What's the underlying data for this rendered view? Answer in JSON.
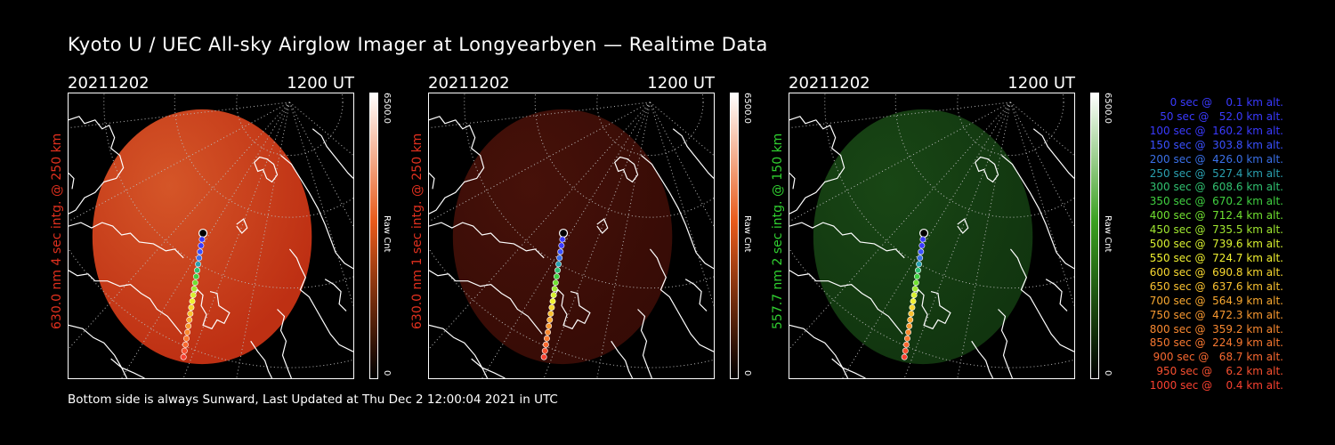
{
  "title": "Kyoto U / UEC All-sky Airglow Imager at Longyearbyen — Realtime Data",
  "panels": [
    {
      "date": "20211202",
      "time": "1200 UT",
      "side_label": "630.0 nm 4 sec intg. @ 250 km",
      "label_color": "#e0301e",
      "cbar_max": "6500.0",
      "cbar_min": "0",
      "cbar_unit": "Raw Cnt",
      "cbar_top": "#ffffff",
      "cbar_mid": "#e85a1a",
      "cbar_bottom": "#000000",
      "disk_color": "#c83214",
      "disk_glow": "#e05a2a",
      "disk_opacity": 0.95
    },
    {
      "date": "20211202",
      "time": "1200 UT",
      "side_label": "630.0 nm 1 sec intg. @ 250 km",
      "label_color": "#e0301e",
      "cbar_max": "6500.0",
      "cbar_min": "0",
      "cbar_unit": "Raw Cnt",
      "cbar_top": "#ffffff",
      "cbar_mid": "#e85a1a",
      "cbar_bottom": "#000000",
      "disk_color": "#3a0c06",
      "disk_glow": "#4a120a",
      "disk_opacity": 0.95
    },
    {
      "date": "20211202",
      "time": "1200 UT",
      "side_label": "557.7 nm 2 sec intg. @ 150 km",
      "label_color": "#30d030",
      "cbar_max": "6500.0",
      "cbar_min": "0",
      "cbar_unit": "Raw Cnt",
      "cbar_top": "#ffffff",
      "cbar_mid": "#3aa020",
      "cbar_bottom": "#000000",
      "disk_color": "#123810",
      "disk_glow": "#1a4a16",
      "disk_opacity": 0.95
    }
  ],
  "footer": "Bottom side is always Sunward, Last Updated at Thu Dec  2 12:00:04 2021 in UTC",
  "legend": [
    {
      "text": "   0 sec @    0.1 km alt.",
      "color": "#3a3aff"
    },
    {
      "text": "  50 sec @   52.0 km alt.",
      "color": "#3a3aff"
    },
    {
      "text": " 100 sec @  160.2 km alt.",
      "color": "#3a3aff"
    },
    {
      "text": " 150 sec @  303.8 km alt.",
      "color": "#3a50ff"
    },
    {
      "text": " 200 sec @  426.0 km alt.",
      "color": "#3a70e8"
    },
    {
      "text": " 250 sec @  527.4 km alt.",
      "color": "#2aa0b0"
    },
    {
      "text": " 300 sec @  608.6 km alt.",
      "color": "#30c070"
    },
    {
      "text": " 350 sec @  670.2 km alt.",
      "color": "#40d040"
    },
    {
      "text": " 400 sec @  712.4 km alt.",
      "color": "#70e030"
    },
    {
      "text": " 450 sec @  735.5 km alt.",
      "color": "#a0e830"
    },
    {
      "text": " 500 sec @  739.6 km alt.",
      "color": "#d8f030"
    },
    {
      "text": " 550 sec @  724.7 km alt.",
      "color": "#f0f030"
    },
    {
      "text": " 600 sec @  690.8 km alt.",
      "color": "#f8d830"
    },
    {
      "text": " 650 sec @  637.6 km alt.",
      "color": "#f8c030"
    },
    {
      "text": " 700 sec @  564.9 km alt.",
      "color": "#f8a830"
    },
    {
      "text": " 750 sec @  472.3 km alt.",
      "color": "#f89830"
    },
    {
      "text": " 800 sec @  359.2 km alt.",
      "color": "#f88830"
    },
    {
      "text": " 850 sec @  224.9 km alt.",
      "color": "#f87830"
    },
    {
      "text": " 900 sec @   68.7 km alt.",
      "color": "#f86830"
    },
    {
      "text": " 950 sec @    6.2 km alt.",
      "color": "#f85030"
    },
    {
      "text": "1000 sec @    0.4 km alt.",
      "color": "#f84030"
    }
  ]
}
